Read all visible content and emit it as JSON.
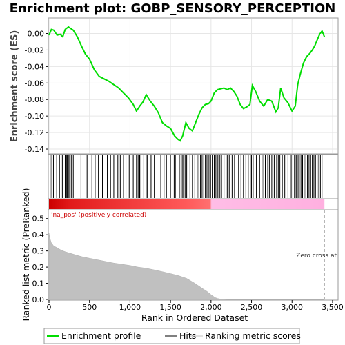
{
  "chart_data": {
    "type": "line",
    "title": "Enrichment plot: GOBP_SENSORY_PERCEPTION",
    "xlabel": "Rank in Ordered Dataset",
    "top_panel": {
      "ylabel": "Enrichment score (ES)",
      "ylim": [
        -0.145,
        0.018
      ],
      "yticks": [
        "-0.14",
        "-0.12",
        "-0.10",
        "-0.08",
        "-0.06",
        "-0.04",
        "-0.02",
        "0.00"
      ],
      "ytick_values": [
        -0.14,
        -0.12,
        -0.1,
        -0.08,
        -0.06,
        -0.04,
        -0.02,
        0.0
      ],
      "series": {
        "name": "Enrichment profile",
        "color": "#00dd00",
        "x": [
          0,
          30,
          60,
          100,
          140,
          170,
          200,
          240,
          270,
          300,
          350,
          400,
          450,
          500,
          560,
          620,
          680,
          740,
          800,
          860,
          920,
          980,
          1040,
          1080,
          1120,
          1160,
          1200,
          1250,
          1300,
          1350,
          1400,
          1450,
          1500,
          1550,
          1590,
          1620,
          1650,
          1690,
          1730,
          1770,
          1810,
          1850,
          1890,
          1930,
          1970,
          2000,
          2040,
          2080,
          2120,
          2160,
          2200,
          2240,
          2280,
          2320,
          2360,
          2400,
          2440,
          2480,
          2510,
          2550,
          2600,
          2650,
          2700,
          2750,
          2800,
          2830,
          2860,
          2900,
          2950,
          3000,
          3040,
          3070,
          3100,
          3140,
          3180,
          3220,
          3250,
          3280,
          3310,
          3340,
          3370,
          3400
        ],
        "y": [
          -0.002,
          0.005,
          0.004,
          -0.002,
          -0.001,
          -0.004,
          0.005,
          0.008,
          0.006,
          0.004,
          -0.004,
          -0.015,
          -0.025,
          -0.031,
          -0.044,
          -0.052,
          -0.055,
          -0.058,
          -0.062,
          -0.066,
          -0.072,
          -0.078,
          -0.086,
          -0.094,
          -0.088,
          -0.083,
          -0.074,
          -0.082,
          -0.088,
          -0.096,
          -0.108,
          -0.112,
          -0.115,
          -0.124,
          -0.128,
          -0.13,
          -0.124,
          -0.108,
          -0.115,
          -0.118,
          -0.108,
          -0.098,
          -0.09,
          -0.086,
          -0.085,
          -0.082,
          -0.072,
          -0.068,
          -0.067,
          -0.066,
          -0.068,
          -0.066,
          -0.07,
          -0.076,
          -0.086,
          -0.091,
          -0.089,
          -0.086,
          -0.063,
          -0.07,
          -0.082,
          -0.088,
          -0.08,
          -0.082,
          -0.095,
          -0.09,
          -0.066,
          -0.078,
          -0.084,
          -0.094,
          -0.088,
          -0.062,
          -0.05,
          -0.036,
          -0.028,
          -0.024,
          -0.02,
          -0.015,
          -0.008,
          -0.001,
          0.003,
          -0.004
        ]
      }
    },
    "hits": {
      "name": "Hits",
      "positions": [
        15,
        35,
        55,
        95,
        130,
        165,
        200,
        215,
        225,
        240,
        255,
        275,
        300,
        345,
        395,
        470,
        530,
        570,
        610,
        660,
        720,
        760,
        800,
        850,
        880,
        920,
        950,
        990,
        1040,
        1080,
        1100,
        1120,
        1135,
        1170,
        1200,
        1215,
        1260,
        1300,
        1380,
        1420,
        1450,
        1500,
        1545,
        1560,
        1610,
        1630,
        1645,
        1660,
        1680,
        1700,
        1740,
        1770,
        1800,
        1830,
        1850,
        1870,
        1890,
        1910,
        1930,
        1950,
        1975,
        1995,
        2015,
        2040,
        2060,
        2085,
        2110,
        2130,
        2160,
        2200,
        2225,
        2260,
        2290,
        2340,
        2370,
        2400,
        2430,
        2460,
        2485,
        2500,
        2520,
        2560,
        2600,
        2630,
        2650,
        2670,
        2700,
        2720,
        2750,
        2780,
        2810,
        2830,
        2850,
        2880,
        2910,
        2950,
        2990,
        3010,
        3030,
        3050,
        3060,
        3075,
        3090,
        3110,
        3130,
        3150,
        3170,
        3190,
        3210,
        3230,
        3250,
        3270,
        3290,
        3310,
        3330,
        3350,
        3370
      ]
    },
    "ranking_panel": {
      "ylabel": "Ranked list metric (PreRanked)",
      "ylim": [
        0,
        0.55
      ],
      "yticks": [
        "0.0",
        "0.1",
        "0.2",
        "0.3",
        "0.4",
        "0.5"
      ],
      "ytick_values": [
        0.0,
        0.1,
        0.2,
        0.3,
        0.4,
        0.5
      ],
      "series": {
        "name": "Ranking metric scores",
        "color": "#c0c0c0",
        "x": [
          0,
          10,
          30,
          60,
          100,
          150,
          200,
          300,
          400,
          500,
          600,
          700,
          800,
          900,
          1000,
          1100,
          1200,
          1300,
          1400,
          1500,
          1600,
          1700,
          1800,
          1850,
          1900,
          1950,
          2000,
          2050,
          2080,
          2120,
          2200,
          2300,
          3400
        ],
        "y": [
          0.41,
          0.38,
          0.35,
          0.33,
          0.32,
          0.305,
          0.295,
          0.28,
          0.265,
          0.255,
          0.245,
          0.235,
          0.225,
          0.218,
          0.21,
          0.2,
          0.193,
          0.183,
          0.172,
          0.16,
          0.147,
          0.13,
          0.1,
          0.083,
          0.066,
          0.05,
          0.03,
          0.012,
          0.006,
          0.002,
          0.0,
          0.0,
          0.0
        ]
      },
      "annotation_left": "'na_pos' (positively correlated)",
      "annotation_left_color": "#cc0000",
      "annotation_right": "Zero cross at",
      "zero_cross_rank": 3400
    },
    "xlim": [
      0,
      3560
    ],
    "xticks": [
      "0",
      "500",
      "1,000",
      "1,500",
      "2,000",
      "2,500",
      "3,000",
      "3,500"
    ],
    "xtick_values": [
      0,
      500,
      1000,
      1500,
      2000,
      2500,
      3000,
      3500
    ],
    "n_genes": 3400,
    "heat_split_rank": 2000,
    "legend": {
      "placement": "bottom",
      "items": [
        "Enrichment profile",
        "Hits",
        "Ranking metric scores"
      ],
      "colors": [
        "#00dd00",
        "#000000",
        "#c0c0c0"
      ]
    }
  }
}
